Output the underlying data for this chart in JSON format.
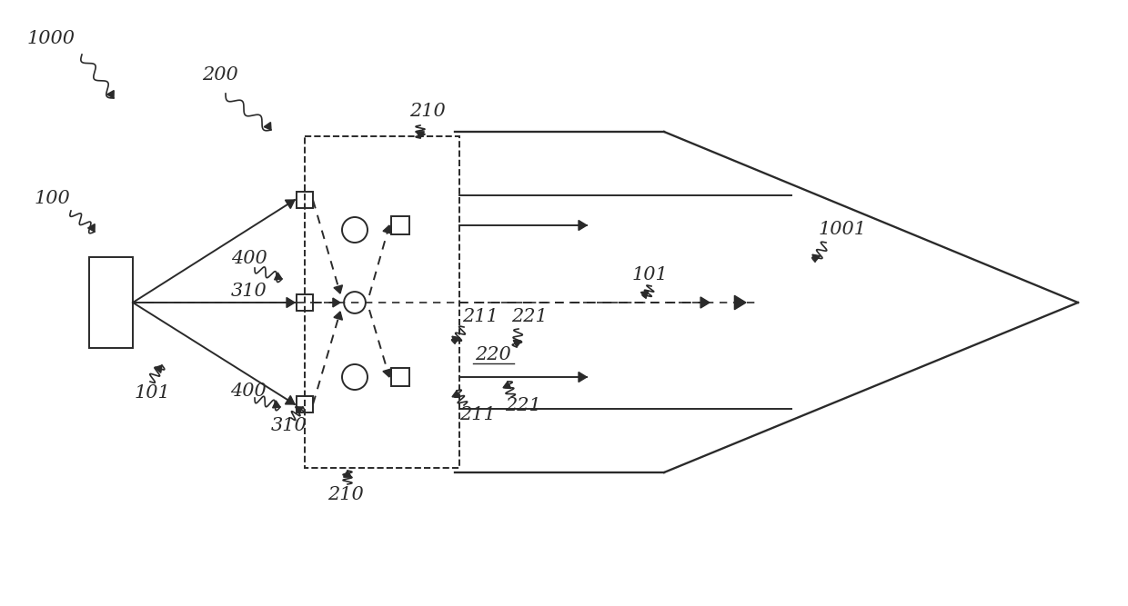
{
  "bg_color": "#ffffff",
  "line_color": "#2a2a2a",
  "fig_width": 12.4,
  "fig_height": 6.67,
  "dpi": 100
}
